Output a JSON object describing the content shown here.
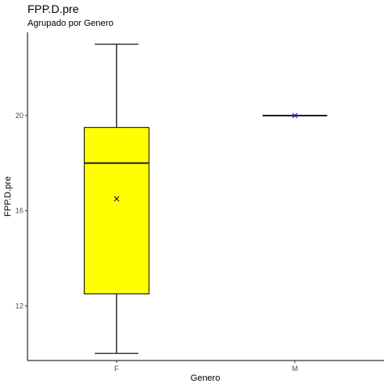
{
  "chart_data": {
    "type": "boxplot",
    "title": "FPP.D.pre",
    "subtitle": "Agrupado por Genero",
    "xlabel": "Genero",
    "ylabel": "FPP.D.pre",
    "categories": [
      "F",
      "M"
    ],
    "ylim": [
      9.7,
      23.5
    ],
    "yticks": [
      12,
      16,
      20
    ],
    "grid": false,
    "legend": "none",
    "boxes": [
      {
        "category": "F",
        "min": 10,
        "q1": 12.5,
        "median": 18,
        "q3": 19.5,
        "max": 23,
        "mean": 16.5,
        "fill": "#ffff00",
        "mean_color": "#000000"
      },
      {
        "category": "M",
        "min": 20,
        "q1": 20,
        "median": 20,
        "q3": 20,
        "max": 20,
        "mean": 20,
        "fill": "#ffff00",
        "mean_color": "#0000ff"
      }
    ]
  }
}
